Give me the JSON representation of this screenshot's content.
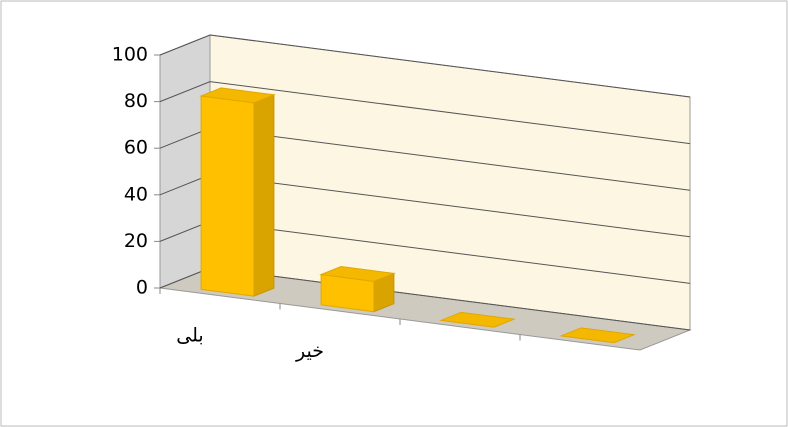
{
  "chart_data": {
    "type": "bar3d",
    "categories": [
      "بلی",
      "خیر",
      null,
      null
    ],
    "values": [
      83,
      13,
      0,
      0
    ],
    "color": "#ffc000",
    "ylim": [
      0,
      100
    ],
    "yticks": [
      0,
      20,
      40,
      60,
      80,
      100
    ],
    "grid": true
  }
}
